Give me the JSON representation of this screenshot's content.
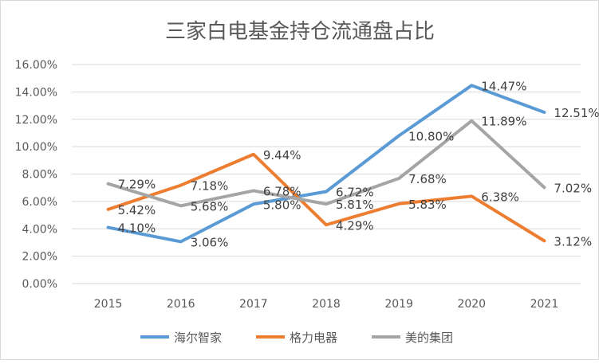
{
  "chart_data": {
    "type": "line",
    "title": "三家白电基金持仓流通盘占比",
    "xlabel": "",
    "ylabel": "",
    "categories": [
      "2015",
      "2016",
      "2017",
      "2018",
      "2019",
      "2020",
      "2021"
    ],
    "ylim": [
      0,
      16
    ],
    "yticks": [
      "0.00%",
      "2.00%",
      "4.00%",
      "6.00%",
      "8.00%",
      "10.00%",
      "12.00%",
      "14.00%",
      "16.00%"
    ],
    "grid": true,
    "legend": "bottom",
    "series": [
      {
        "name": "海尔智家",
        "color": "#5B9BD5",
        "values": [
          4.1,
          3.06,
          5.8,
          6.72,
          10.8,
          14.47,
          12.51
        ],
        "labels": [
          "4.10%",
          "3.06%",
          "5.80%",
          "6.72%",
          "10.80%",
          "14.47%",
          "12.51%"
        ]
      },
      {
        "name": "格力电器",
        "color": "#ED7D31",
        "values": [
          5.42,
          7.18,
          9.44,
          4.29,
          5.83,
          6.38,
          3.12
        ],
        "labels": [
          "5.42%",
          "7.18%",
          "9.44%",
          "4.29%",
          "5.83%",
          "6.38%",
          "3.12%"
        ]
      },
      {
        "name": "美的集团",
        "color": "#A5A5A5",
        "values": [
          7.29,
          5.68,
          6.78,
          5.81,
          7.68,
          11.89,
          7.02
        ],
        "labels": [
          "7.29%",
          "5.68%",
          "6.78%",
          "5.81%",
          "7.68%",
          "11.89%",
          "7.02%"
        ]
      }
    ]
  }
}
